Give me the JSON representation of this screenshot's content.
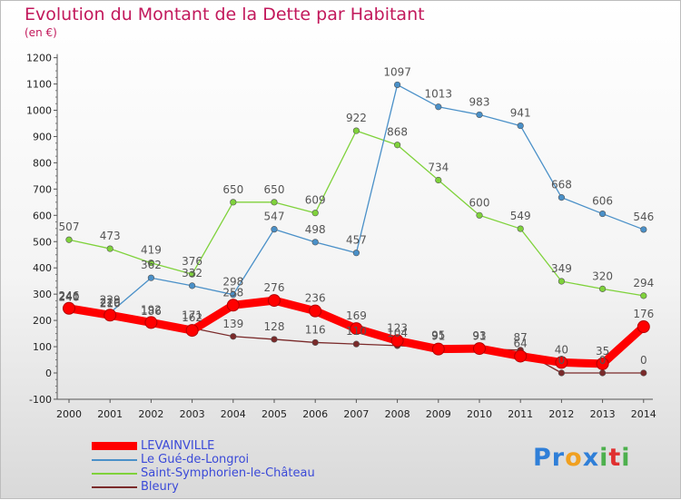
{
  "chart_data": {
    "type": "line",
    "title": "Evolution du Montant de la Dette par Habitant",
    "subtitle": "(en €)",
    "categories": [
      "2000",
      "2001",
      "2002",
      "2003",
      "2004",
      "2005",
      "2006",
      "2007",
      "2008",
      "2009",
      "2010",
      "2011",
      "2012",
      "2013",
      "2014"
    ],
    "ylim": [
      -100,
      1200
    ],
    "yticks": [
      "-100",
      "0",
      "100",
      "200",
      "300",
      "400",
      "500",
      "600",
      "700",
      "800",
      "900",
      "1000",
      "1100",
      "1200"
    ],
    "grid": false,
    "legend_position": "bottom-left",
    "series": [
      {
        "name": "LEVAINVILLE",
        "color": "#ff0000",
        "values": [
          246,
          220,
          192,
          162,
          258,
          276,
          236,
          169,
          123,
          91,
          93,
          64,
          40,
          35,
          176
        ]
      },
      {
        "name": "Le Gué-de-Longroi",
        "color": "#4a90c8",
        "values": [
          240,
          229,
          362,
          332,
          298,
          547,
          498,
          457,
          1097,
          1013,
          983,
          941,
          668,
          606,
          546
        ]
      },
      {
        "name": "Saint-Symphorien-le-Château",
        "color": "#7fd23b",
        "values": [
          507,
          473,
          419,
          376,
          650,
          650,
          609,
          922,
          868,
          734,
          600,
          549,
          349,
          320,
          294
        ]
      },
      {
        "name": "Bleury",
        "color": "#7a2a2a",
        "values": [
          241,
          216,
          186,
          171,
          139,
          128,
          116,
          110,
          104,
          95,
          91,
          87,
          0,
          0,
          0
        ]
      }
    ]
  },
  "logo": {
    "text": "Proxiti",
    "letters": [
      "P",
      "r",
      "o",
      "x",
      "i",
      "t",
      "i"
    ],
    "colors": [
      "#2f7fd8",
      "#2f7fd8",
      "#f0a020",
      "#2f7fd8",
      "#4db04d",
      "#e03030",
      "#4db04d"
    ]
  }
}
